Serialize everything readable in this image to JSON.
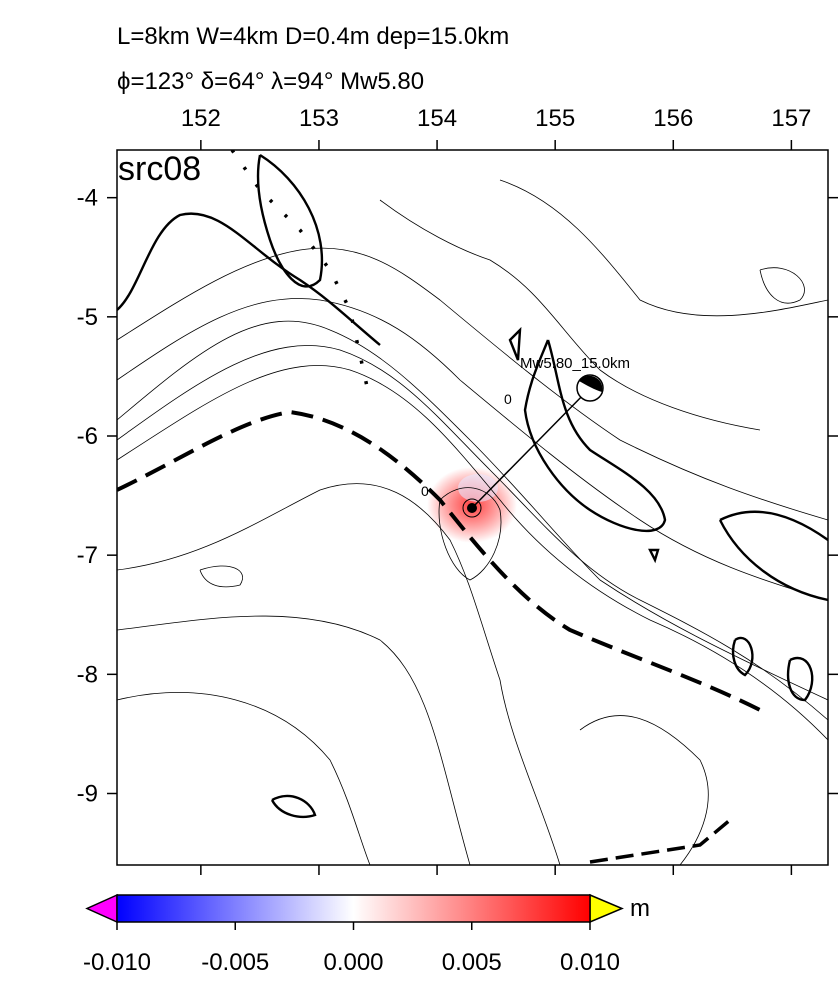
{
  "title": [
    "L=8km W=4km D=0.4m dep=15.0km",
    "ϕ=123° δ=64° λ=94° Mw5.80"
  ],
  "panel_label": "src08",
  "annotations": [
    "Mw5.80_15.0km",
    "0",
    "0"
  ],
  "map": {
    "xlim": [
      151.29,
      157.31
    ],
    "ylim": [
      -9.6,
      -3.6
    ],
    "xticks": [
      152,
      153,
      154,
      155,
      156,
      157
    ],
    "yticks": [
      -4,
      -5,
      -6,
      -7,
      -8,
      -9
    ]
  },
  "colorbar": {
    "lim": [
      -0.01,
      0.01
    ],
    "ticks": [
      {
        "value": -0.01,
        "label": "-0.010"
      },
      {
        "value": -0.005,
        "label": "-0.005"
      },
      {
        "value": 0,
        "label": "0.000"
      },
      {
        "value": 0.005,
        "label": "0.005"
      },
      {
        "value": 0.01,
        "label": "0.010"
      }
    ],
    "unit": "m",
    "colors": [
      "#0000ff",
      "#ffffff",
      "#ff0000"
    ],
    "below_color": "#ff00ff",
    "above_color": "#ffff00"
  }
}
